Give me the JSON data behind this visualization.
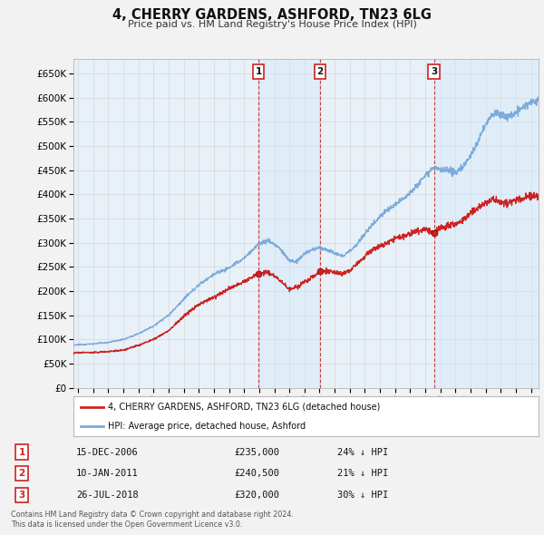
{
  "title": "4, CHERRY GARDENS, ASHFORD, TN23 6LG",
  "subtitle": "Price paid vs. HM Land Registry's House Price Index (HPI)",
  "ylim": [
    0,
    680000
  ],
  "yticks": [
    0,
    50000,
    100000,
    150000,
    200000,
    250000,
    300000,
    350000,
    400000,
    450000,
    500000,
    550000,
    600000,
    650000
  ],
  "xlim_start": 1994.7,
  "xlim_end": 2025.5,
  "hpi_color": "#7aabdb",
  "price_color": "#cc2222",
  "shade_color": "#d0e8f8",
  "bg_color": "#e8f0f8",
  "grid_color": "#cccccc",
  "transactions": [
    {
      "label": "1",
      "date_decimal": 2006.958,
      "price": 235000,
      "date_str": "15-DEC-2006",
      "price_str": "£235,000",
      "pct_str": "24% ↓ HPI"
    },
    {
      "label": "2",
      "date_decimal": 2011.033,
      "price": 240500,
      "date_str": "10-JAN-2011",
      "price_str": "£240,500",
      "pct_str": "21% ↓ HPI"
    },
    {
      "label": "3",
      "date_decimal": 2018.567,
      "price": 320000,
      "date_str": "26-JUL-2018",
      "price_str": "£320,000",
      "pct_str": "30% ↓ HPI"
    }
  ],
  "legend_entries": [
    "4, CHERRY GARDENS, ASHFORD, TN23 6LG (detached house)",
    "HPI: Average price, detached house, Ashford"
  ],
  "footnote1": "Contains HM Land Registry data © Crown copyright and database right 2024.",
  "footnote2": "This data is licensed under the Open Government Licence v3.0.",
  "hpi_anchors": {
    "1994.7": 88000,
    "1995.0": 89000,
    "1996.0": 91000,
    "1997.0": 94000,
    "1998.0": 100000,
    "1999.0": 112000,
    "2000.0": 128000,
    "2001.0": 150000,
    "2002.0": 183000,
    "2003.0": 213000,
    "2004.0": 235000,
    "2005.0": 248000,
    "2006.0": 268000,
    "2007.0": 298000,
    "2007.6": 305000,
    "2008.3": 290000,
    "2009.0": 263000,
    "2009.5": 260000,
    "2010.0": 278000,
    "2010.5": 285000,
    "2011.0": 290000,
    "2011.5": 285000,
    "2012.0": 278000,
    "2012.5": 272000,
    "2013.0": 283000,
    "2013.5": 298000,
    "2014.0": 318000,
    "2014.5": 338000,
    "2015.0": 355000,
    "2015.5": 368000,
    "2016.0": 378000,
    "2016.5": 390000,
    "2017.0": 405000,
    "2017.5": 420000,
    "2018.0": 440000,
    "2018.5": 455000,
    "2019.0": 450000,
    "2019.5": 448000,
    "2020.0": 445000,
    "2020.5": 458000,
    "2021.0": 480000,
    "2021.5": 510000,
    "2022.0": 545000,
    "2022.5": 568000,
    "2023.0": 565000,
    "2023.5": 560000,
    "2024.0": 568000,
    "2024.5": 580000,
    "2025.0": 590000,
    "2025.5": 592000
  },
  "price_anchors": {
    "1994.7": 72000,
    "1995.0": 73000,
    "1996.0": 73000,
    "1997.0": 75000,
    "1998.0": 78000,
    "1999.0": 88000,
    "2000.0": 100000,
    "2001.0": 118000,
    "2002.0": 148000,
    "2003.0": 173000,
    "2004.0": 188000,
    "2005.0": 205000,
    "2006.0": 220000,
    "2006.958": 235000,
    "2007.5": 240000,
    "2008.0": 232000,
    "2008.5": 218000,
    "2009.0": 205000,
    "2009.5": 208000,
    "2010.0": 218000,
    "2010.5": 228000,
    "2011.033": 240500,
    "2011.5": 242000,
    "2012.0": 238000,
    "2012.5": 235000,
    "2013.0": 243000,
    "2013.5": 258000,
    "2014.0": 272000,
    "2014.5": 285000,
    "2015.0": 293000,
    "2015.5": 300000,
    "2016.0": 308000,
    "2016.5": 312000,
    "2017.0": 318000,
    "2017.5": 325000,
    "2018.0": 328000,
    "2018.567": 320000,
    "2019.0": 330000,
    "2019.5": 335000,
    "2020.0": 338000,
    "2020.5": 348000,
    "2021.0": 360000,
    "2021.5": 372000,
    "2022.0": 382000,
    "2022.5": 388000,
    "2023.0": 385000,
    "2023.5": 383000,
    "2024.0": 388000,
    "2024.5": 392000,
    "2025.0": 395000,
    "2025.5": 397000
  }
}
